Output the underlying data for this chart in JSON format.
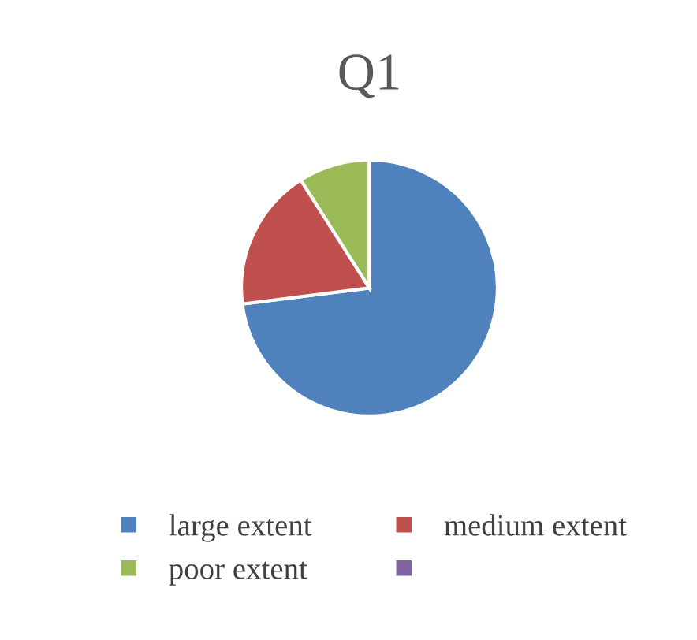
{
  "chart_data": {
    "type": "pie",
    "title": "Q1",
    "categories": [
      "large extent",
      "medium extent",
      "poor extent",
      null
    ],
    "values": [
      73,
      18,
      9,
      0
    ],
    "colors": [
      "#4f81bd",
      "#c0504d",
      "#9bbb59",
      "#8064a2"
    ],
    "legend": "bottom"
  }
}
